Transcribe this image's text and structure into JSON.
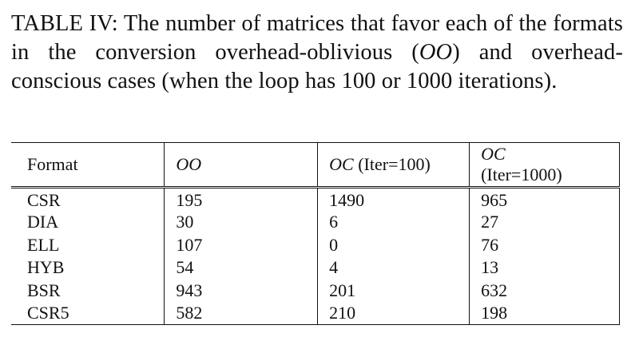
{
  "caption": {
    "label": "TABLE IV:",
    "text_before_oo": "The number of matrices that favor each of the formats in the conversion overhead-oblivious (",
    "oo_abbrev": "OO",
    "text_after_oo": ") and overhead-conscious cases (when the loop has 100 or 1000 iterations)."
  },
  "table": {
    "headers": {
      "format": "Format",
      "oo": "OO",
      "oc_100_abbrev": "OC",
      "oc_100_suffix": "(Iter=100)",
      "oc_1000_abbrev": "OC",
      "oc_1000_suffix": "(Iter=1000)"
    },
    "rows": [
      {
        "format": "CSR",
        "oo": "195",
        "oc100": "1490",
        "oc1000": "965"
      },
      {
        "format": "DIA",
        "oo": "30",
        "oc100": "6",
        "oc1000": "27"
      },
      {
        "format": "ELL",
        "oo": "107",
        "oc100": "0",
        "oc1000": "76"
      },
      {
        "format": "HYB",
        "oo": "54",
        "oc100": "4",
        "oc1000": "13"
      },
      {
        "format": "BSR",
        "oo": "943",
        "oc100": "201",
        "oc1000": "632"
      },
      {
        "format": "CSR5",
        "oo": "582",
        "oc100": "210",
        "oc1000": "198"
      }
    ]
  }
}
